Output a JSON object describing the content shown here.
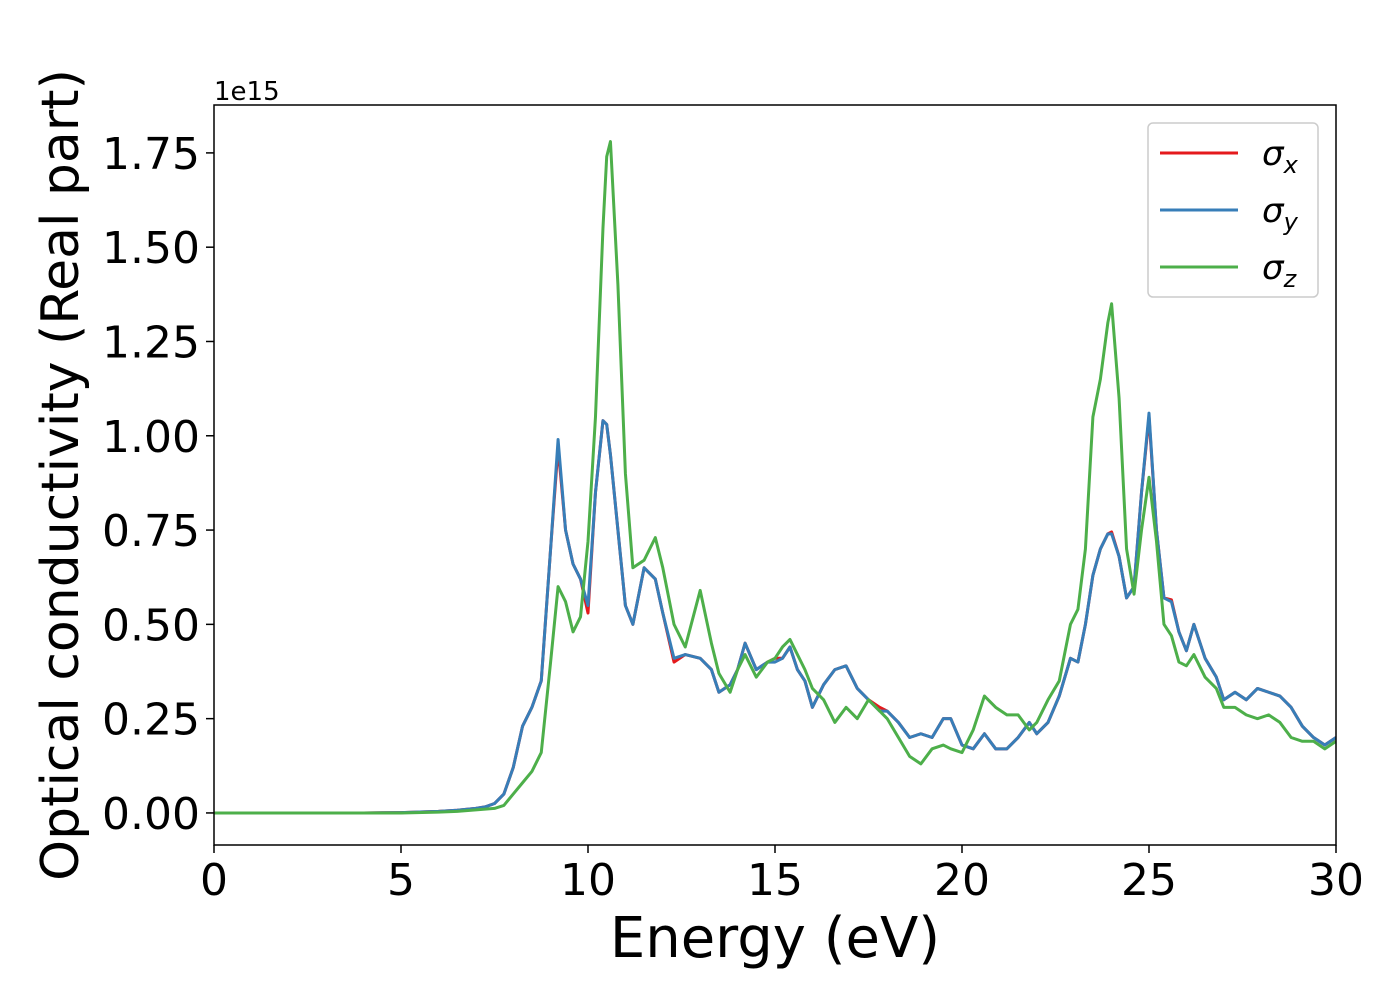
{
  "chart_data": {
    "type": "line",
    "xlabel": "Energy (eV)",
    "ylabel": "Optical conductivity (Real part)",
    "y_offset_label": "1e15",
    "x": [
      0,
      2,
      4,
      5,
      6,
      6.5,
      7,
      7.25,
      7.5,
      7.75,
      8,
      8.25,
      8.5,
      8.75,
      9,
      9.2,
      9.4,
      9.6,
      9.8,
      10,
      10.2,
      10.4,
      10.5,
      10.6,
      10.8,
      11,
      11.2,
      11.5,
      11.8,
      12,
      12.3,
      12.6,
      13,
      13.3,
      13.5,
      13.8,
      14,
      14.2,
      14.5,
      14.8,
      15,
      15.2,
      15.4,
      15.6,
      15.8,
      16,
      16.3,
      16.6,
      16.9,
      17.2,
      17.5,
      17.8,
      18,
      18.3,
      18.6,
      18.9,
      19.2,
      19.5,
      19.7,
      20,
      20.3,
      20.6,
      20.9,
      21.2,
      21.5,
      21.8,
      22,
      22.3,
      22.6,
      22.9,
      23.1,
      23.3,
      23.5,
      23.7,
      23.9,
      24,
      24.2,
      24.4,
      24.6,
      24.8,
      25,
      25.2,
      25.4,
      25.6,
      25.8,
      26,
      26.2,
      26.5,
      26.8,
      27,
      27.3,
      27.6,
      27.9,
      28.2,
      28.5,
      28.8,
      29.1,
      29.4,
      29.7,
      30
    ],
    "series": [
      {
        "name": "σx",
        "color": "#e41a1c",
        "values": [
          0,
          0,
          0,
          0.001,
          0.004,
          0.007,
          0.012,
          0.016,
          0.025,
          0.05,
          0.12,
          0.23,
          0.28,
          0.35,
          0.7,
          0.97,
          0.75,
          0.66,
          0.62,
          0.53,
          0.85,
          1.04,
          1.03,
          0.95,
          0.75,
          0.55,
          0.5,
          0.65,
          0.62,
          0.53,
          0.4,
          0.42,
          0.41,
          0.38,
          0.32,
          0.34,
          0.38,
          0.45,
          0.38,
          0.4,
          0.41,
          0.41,
          0.44,
          0.38,
          0.35,
          0.28,
          0.34,
          0.38,
          0.39,
          0.33,
          0.3,
          0.28,
          0.27,
          0.24,
          0.2,
          0.21,
          0.2,
          0.25,
          0.25,
          0.18,
          0.17,
          0.21,
          0.17,
          0.17,
          0.2,
          0.24,
          0.21,
          0.24,
          0.31,
          0.41,
          0.4,
          0.5,
          0.63,
          0.7,
          0.74,
          0.745,
          0.68,
          0.57,
          0.6,
          0.85,
          1.05,
          0.75,
          0.57,
          0.565,
          0.48,
          0.43,
          0.5,
          0.41,
          0.36,
          0.3,
          0.32,
          0.3,
          0.33,
          0.32,
          0.31,
          0.28,
          0.23,
          0.2,
          0.18,
          0.2
        ]
      },
      {
        "name": "σy",
        "color": "#377eb8",
        "values": [
          0,
          0,
          0,
          0.001,
          0.004,
          0.007,
          0.012,
          0.016,
          0.025,
          0.05,
          0.12,
          0.23,
          0.28,
          0.35,
          0.7,
          0.99,
          0.75,
          0.66,
          0.62,
          0.55,
          0.85,
          1.04,
          1.03,
          0.95,
          0.75,
          0.55,
          0.5,
          0.65,
          0.62,
          0.53,
          0.41,
          0.42,
          0.41,
          0.38,
          0.32,
          0.34,
          0.38,
          0.45,
          0.38,
          0.4,
          0.4,
          0.41,
          0.44,
          0.38,
          0.35,
          0.28,
          0.34,
          0.38,
          0.39,
          0.33,
          0.3,
          0.27,
          0.27,
          0.24,
          0.2,
          0.21,
          0.2,
          0.25,
          0.25,
          0.18,
          0.17,
          0.21,
          0.17,
          0.17,
          0.2,
          0.24,
          0.21,
          0.24,
          0.31,
          0.41,
          0.4,
          0.5,
          0.63,
          0.7,
          0.74,
          0.74,
          0.68,
          0.57,
          0.6,
          0.85,
          1.06,
          0.75,
          0.57,
          0.56,
          0.48,
          0.43,
          0.5,
          0.41,
          0.36,
          0.3,
          0.32,
          0.3,
          0.33,
          0.32,
          0.31,
          0.28,
          0.23,
          0.2,
          0.18,
          0.2
        ]
      },
      {
        "name": "σz",
        "color": "#4daf4a",
        "values": [
          0,
          0,
          0,
          0,
          0.002,
          0.004,
          0.008,
          0.01,
          0.012,
          0.02,
          0.05,
          0.08,
          0.11,
          0.16,
          0.4,
          0.6,
          0.56,
          0.48,
          0.52,
          0.72,
          1.05,
          1.55,
          1.74,
          1.78,
          1.4,
          0.9,
          0.65,
          0.67,
          0.73,
          0.65,
          0.5,
          0.44,
          0.59,
          0.45,
          0.37,
          0.32,
          0.38,
          0.42,
          0.36,
          0.4,
          0.41,
          0.44,
          0.46,
          0.42,
          0.38,
          0.33,
          0.3,
          0.24,
          0.28,
          0.25,
          0.3,
          0.27,
          0.25,
          0.2,
          0.15,
          0.13,
          0.17,
          0.18,
          0.17,
          0.16,
          0.22,
          0.31,
          0.28,
          0.26,
          0.26,
          0.22,
          0.24,
          0.3,
          0.35,
          0.5,
          0.54,
          0.7,
          1.05,
          1.15,
          1.3,
          1.35,
          1.1,
          0.7,
          0.58,
          0.75,
          0.89,
          0.72,
          0.5,
          0.47,
          0.4,
          0.39,
          0.42,
          0.36,
          0.33,
          0.28,
          0.28,
          0.26,
          0.25,
          0.26,
          0.24,
          0.2,
          0.19,
          0.19,
          0.17,
          0.19
        ]
      }
    ],
    "xlim": [
      0,
      30
    ],
    "xticks": [
      0,
      5,
      10,
      15,
      20,
      25,
      30
    ],
    "ylim": [
      -0.085,
      1.877
    ],
    "yticks": [
      {
        "value": 0,
        "label": "0.00"
      },
      {
        "value": 0.25,
        "label": "0.25"
      },
      {
        "value": 0.5,
        "label": "0.50"
      },
      {
        "value": 0.75,
        "label": "0.75"
      },
      {
        "value": 1,
        "label": "1.00"
      },
      {
        "value": 1.25,
        "label": "1.25"
      },
      {
        "value": 1.5,
        "label": "1.50"
      },
      {
        "value": 1.75,
        "label": "1.75"
      }
    ],
    "legend": "upper right",
    "grid": false
  }
}
